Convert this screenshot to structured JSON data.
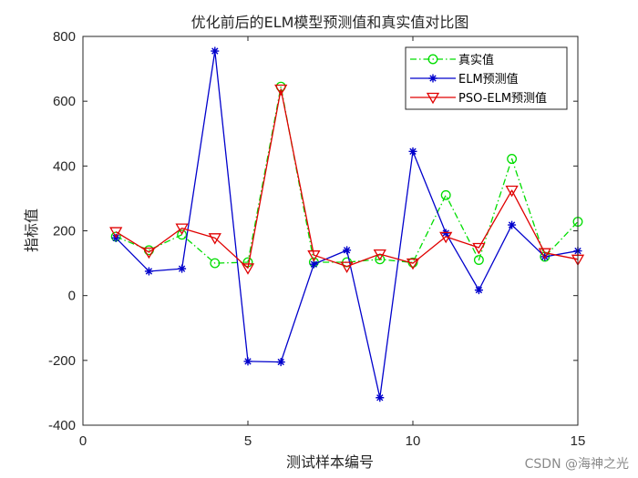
{
  "chart_data": {
    "type": "line",
    "title": "优化前后的ELM模型预测值和真实值对比图",
    "xlabel": "测试样本编号",
    "ylabel": "指标值",
    "xlim": [
      0,
      15
    ],
    "ylim": [
      -400,
      800
    ],
    "xticks": [
      0,
      5,
      10,
      15
    ],
    "yticks": [
      -400,
      -200,
      0,
      200,
      400,
      600,
      800
    ],
    "grid": false,
    "legend_position": "top-right",
    "x": [
      1,
      2,
      3,
      4,
      5,
      6,
      7,
      8,
      9,
      10,
      11,
      12,
      13,
      14,
      15
    ],
    "series": [
      {
        "name": "真实值",
        "color": "#00dd00",
        "line_style": "dash-dot",
        "marker": "circle",
        "values": [
          182,
          140,
          188,
          100,
          103,
          645,
          103,
          103,
          112,
          102,
          310,
          110,
          422,
          120,
          228
        ]
      },
      {
        "name": "ELM预测值",
        "color": "#0000cc",
        "line_style": "solid",
        "marker": "asterisk",
        "values": [
          178,
          75,
          83,
          755,
          -203,
          -205,
          97,
          140,
          -315,
          445,
          193,
          17,
          218,
          120,
          138
        ]
      },
      {
        "name": "PSO-ELM预测值",
        "color": "#e00000",
        "line_style": "solid",
        "marker": "triangle-down",
        "values": [
          197,
          134,
          208,
          178,
          85,
          637,
          125,
          90,
          128,
          100,
          182,
          148,
          325,
          132,
          112
        ]
      }
    ]
  },
  "watermark": "CSDN @海神之光"
}
